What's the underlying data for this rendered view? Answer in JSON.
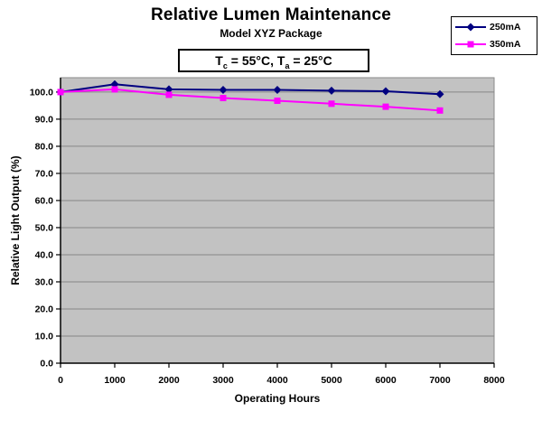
{
  "chart": {
    "title": "Relative Lumen Maintenance",
    "subtitle": "Model XYZ Package",
    "condition": {
      "t1": "T",
      "s1": "c",
      "t2": " = 55°C, T",
      "s2": "a",
      "t3": " = 25°C"
    }
  },
  "chart_data": {
    "type": "line",
    "title": "Relative Lumen Maintenance",
    "subtitle": "Model XYZ Package",
    "annotation": "Tc = 55°C, Ta = 25°C",
    "xlabel": "Operating Hours",
    "ylabel": "Relative Light Output (%)",
    "x": [
      0,
      1000,
      2000,
      3000,
      4000,
      5000,
      6000,
      7000
    ],
    "series": [
      {
        "name": "250mA",
        "color": "#000080",
        "marker": "diamond",
        "values": [
          100.0,
          102.9,
          101.0,
          100.8,
          100.8,
          100.5,
          100.3,
          99.2
        ]
      },
      {
        "name": "350mA",
        "color": "#FF00FF",
        "marker": "square",
        "values": [
          100.0,
          101.0,
          99.0,
          97.8,
          96.8,
          95.7,
          94.6,
          93.2
        ]
      }
    ],
    "xlim": [
      0,
      8000
    ],
    "ylim": [
      0,
      105.3
    ],
    "x_ticks": [
      0,
      1000,
      2000,
      3000,
      4000,
      5000,
      6000,
      7000,
      8000
    ],
    "y_ticks": [
      0,
      10,
      20,
      30,
      40,
      50,
      60,
      70,
      80,
      90,
      100
    ],
    "y_tick_decimals": 1,
    "grid": true,
    "legend_position": "top-right",
    "colors": {
      "plot_bg": "#C2C2C2",
      "gridline": "#878787",
      "plot_border": "#8A8A8A",
      "axis": "#000000"
    }
  }
}
